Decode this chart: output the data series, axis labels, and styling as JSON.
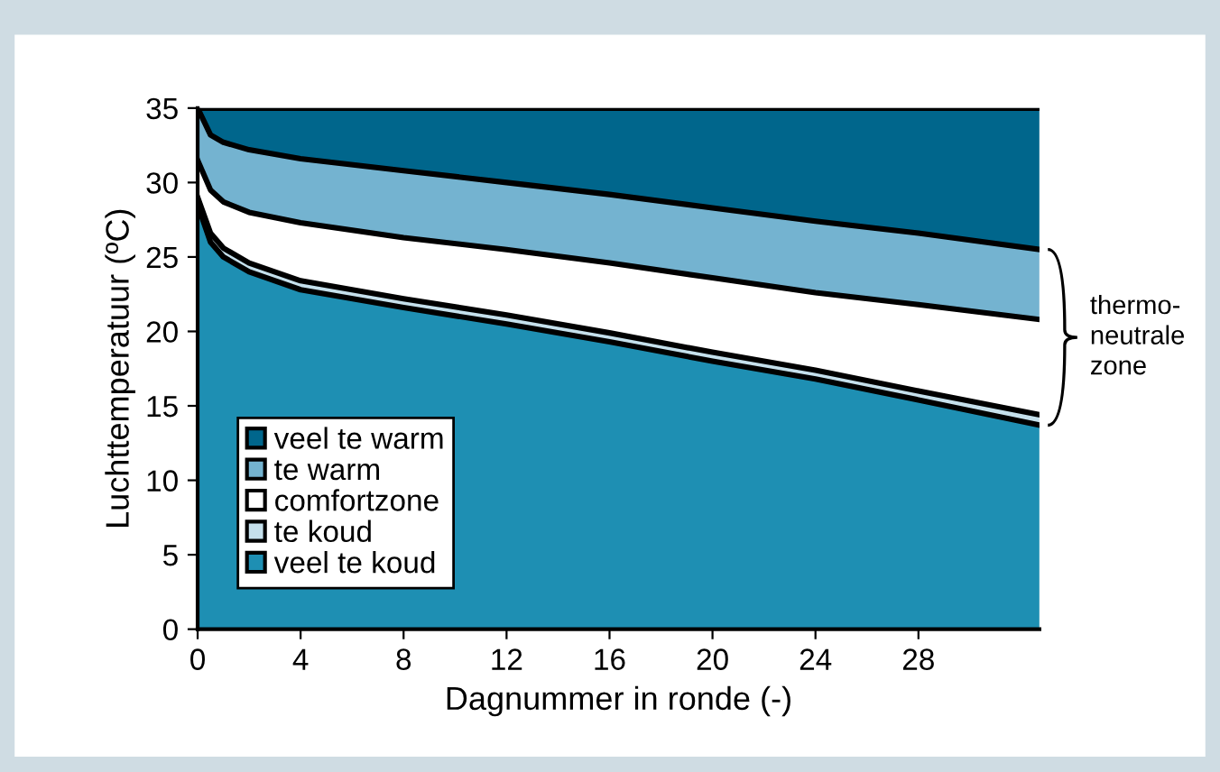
{
  "chart_data": {
    "type": "area",
    "stacked": true,
    "xlabel": "Dagnummer in ronde (-)",
    "ylabel": "Luchttemperatuur (ºC)",
    "x": [
      0,
      0.5,
      1,
      2,
      4,
      8,
      12,
      16,
      20,
      24,
      28,
      32.7
    ],
    "series": [
      {
        "name": "veel te koud",
        "color": "#1e8fb3",
        "values": [
          28.5,
          26,
          25,
          24,
          22.8,
          21.6,
          20.5,
          19.3,
          18,
          16.8,
          15.4,
          13.7
        ]
      },
      {
        "name": "te koud",
        "color": "#c5e0ec",
        "values": [
          0.5,
          0.6,
          0.6,
          0.6,
          0.6,
          0.6,
          0.6,
          0.6,
          0.6,
          0.6,
          0.6,
          0.7
        ]
      },
      {
        "name": "comfortzone",
        "color": "#ffffff",
        "values": [
          2.5,
          2.9,
          3.1,
          3.4,
          3.9,
          4.1,
          4.4,
          4.7,
          5.0,
          5.2,
          5.8,
          6.4
        ]
      },
      {
        "name": "te warm",
        "color": "#74b3d0",
        "values": [
          3.5,
          3.7,
          4.0,
          4.2,
          4.3,
          4.5,
          4.5,
          4.6,
          4.7,
          4.8,
          4.8,
          4.7
        ]
      },
      {
        "name": "veel te warm",
        "color": "#00668c",
        "values": [
          0,
          1.8,
          2.3,
          2.8,
          3.4,
          4.2,
          5,
          5.8,
          6.7,
          7.6,
          8.4,
          9.5
        ]
      }
    ],
    "xlim": [
      0,
      32.7
    ],
    "ylim": [
      0,
      35
    ],
    "xticks": [
      0,
      4,
      8,
      12,
      16,
      20,
      24,
      28
    ],
    "yticks": [
      0,
      5,
      10,
      15,
      20,
      25,
      30,
      35
    ],
    "grid": false,
    "legend": "bottom left",
    "annotations": [
      "thermo-\nneutrale\nzone"
    ]
  }
}
